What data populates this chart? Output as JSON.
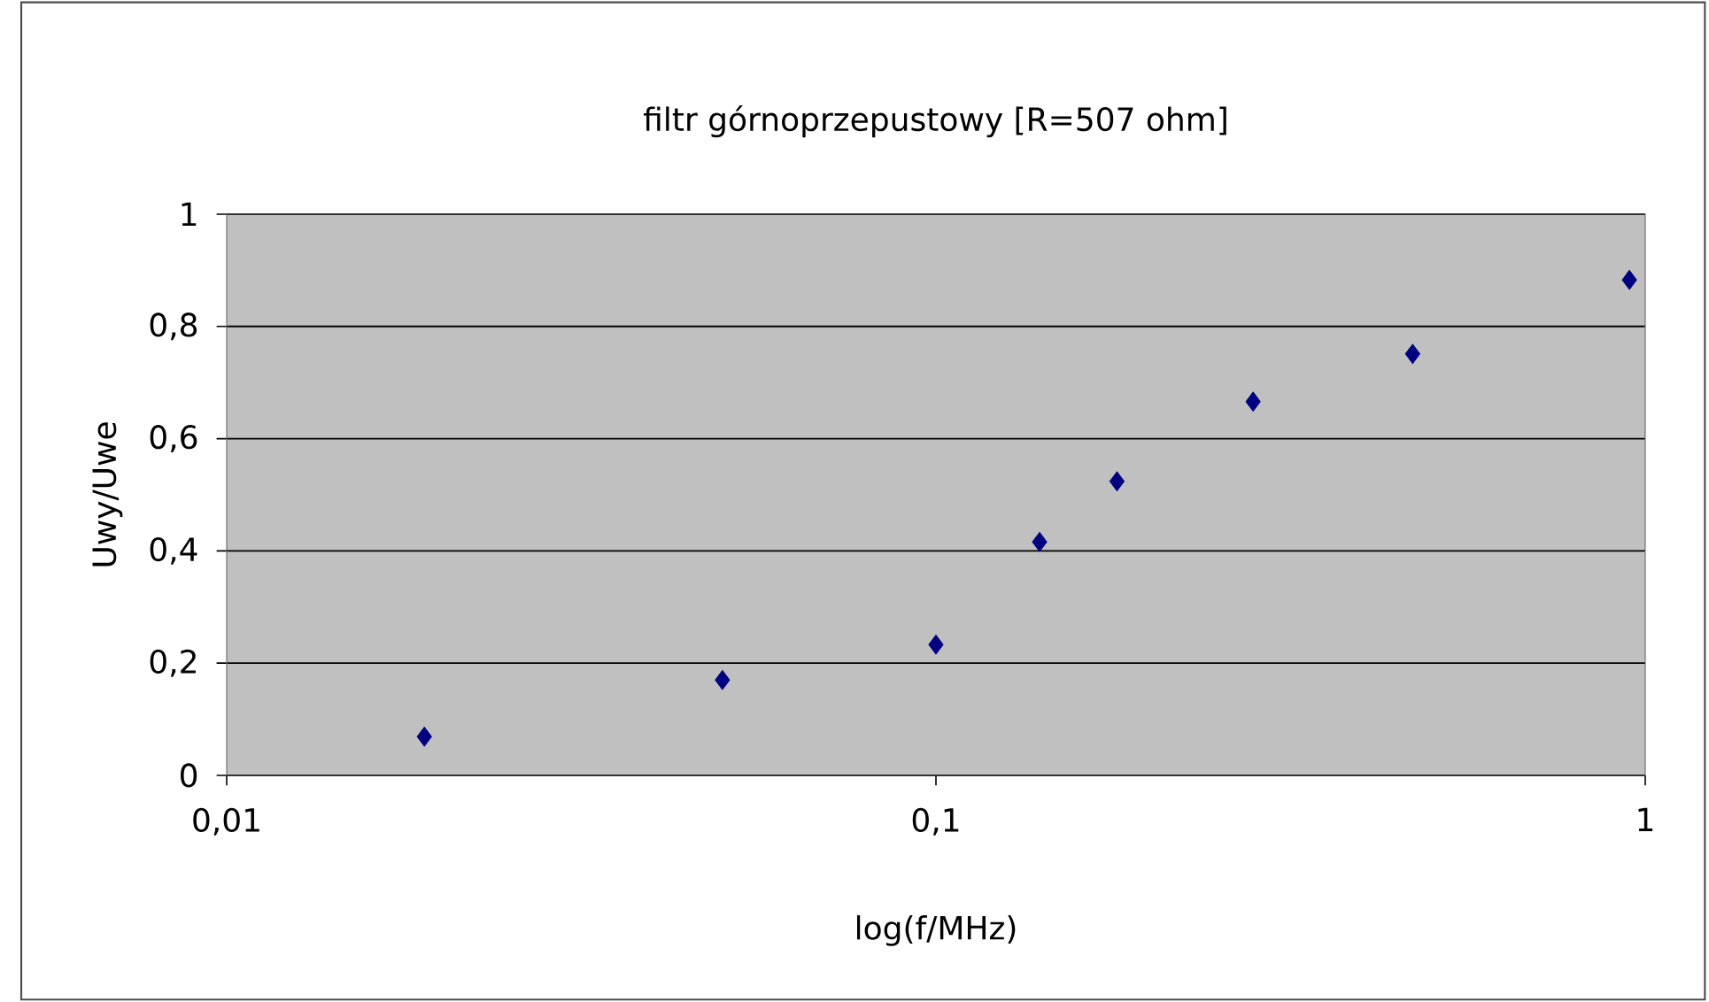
{
  "chart_data": {
    "type": "scatter",
    "title": "filtr górnoprzepustowy [R=507 ohm]",
    "xlabel": "log(f/MHz)",
    "ylabel": "Uwy/Uwe",
    "x": [
      0.019,
      0.05,
      0.1,
      0.14,
      0.18,
      0.28,
      0.47,
      0.95
    ],
    "series": [
      {
        "color": "#000080",
        "values": [
          0.069,
          0.17,
          0.233,
          0.416,
          0.524,
          0.666,
          0.751,
          0.883
        ]
      }
    ],
    "log": "x",
    "xlim": [
      0.01,
      1
    ],
    "ylim": [
      0,
      1
    ],
    "xticks": [
      {
        "value": 0.01,
        "label": "0,01"
      },
      {
        "value": 0.1,
        "label": "0,1"
      },
      1
    ],
    "yticks": [
      0,
      {
        "value": 0.2,
        "label": "0,2"
      },
      {
        "value": 0.4,
        "label": "0,4"
      },
      {
        "value": 0.6,
        "label": "0,6"
      },
      {
        "value": 0.8,
        "label": "0,8"
      },
      1
    ],
    "grid": "y",
    "marker": "diamond"
  }
}
